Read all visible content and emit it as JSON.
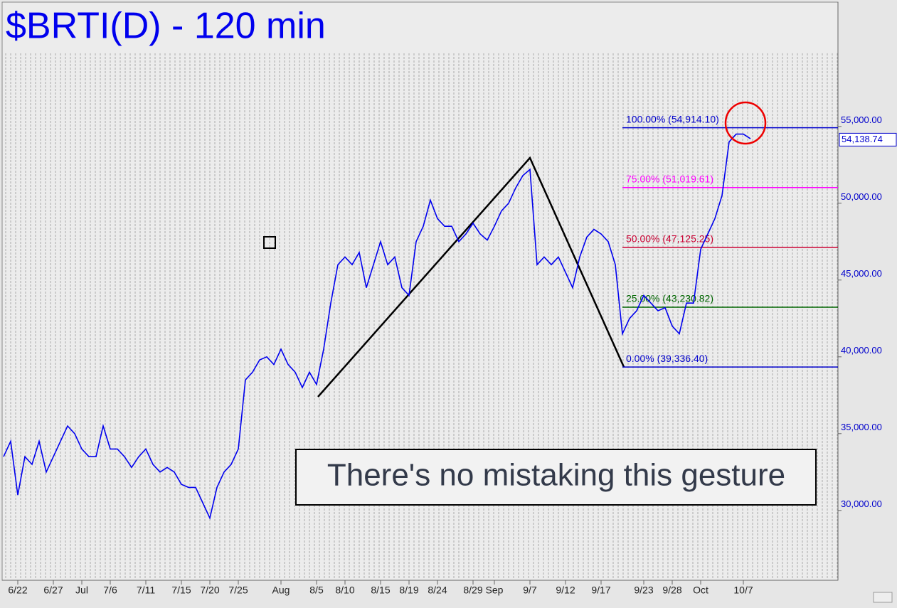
{
  "chart_data": {
    "type": "line",
    "title": "$BRTI(D) - 120 min",
    "annotation": "There's no mistaking this gesture",
    "categories": [
      null,
      null,
      "6/22",
      null,
      null,
      null,
      null,
      "6/27",
      null,
      null,
      null,
      "Jul",
      null,
      null,
      null,
      "7/6",
      null,
      null,
      null,
      null,
      "7/11",
      null,
      null,
      null,
      null,
      "7/15",
      null,
      null,
      null,
      "7/20",
      null,
      null,
      null,
      "7/25",
      null,
      null,
      null,
      null,
      null,
      "Aug",
      null,
      null,
      null,
      null,
      "8/5",
      null,
      null,
      null,
      "8/10",
      null,
      null,
      null,
      null,
      "8/15",
      null,
      null,
      null,
      "8/19",
      null,
      null,
      null,
      "8/24",
      null,
      null,
      null,
      null,
      "8/29",
      null,
      null,
      "Sep",
      null,
      null,
      null,
      null,
      "9/7",
      null,
      null,
      null,
      null,
      "9/12",
      null,
      null,
      null,
      null,
      "9/17",
      null,
      null,
      null,
      null,
      null,
      "9/23",
      null,
      null,
      null,
      "9/28",
      null,
      null,
      null,
      "Oct",
      null,
      null,
      null,
      null,
      null,
      "10/7",
      null
    ],
    "series": [
      {
        "name": "$BRTI(D)",
        "color": "#0000ee",
        "values": [
          33500,
          34500,
          31000,
          33500,
          33000,
          34500,
          32500,
          33500,
          34500,
          35500,
          35000,
          34000,
          33500,
          33500,
          35500,
          34000,
          34000,
          33500,
          32800,
          33500,
          34000,
          33000,
          32500,
          32800,
          32500,
          31700,
          31500,
          31500,
          30500,
          29500,
          31500,
          32500,
          33000,
          34000,
          38500,
          39000,
          39800,
          40000,
          39500,
          40500,
          39500,
          39000,
          38000,
          39000,
          38200,
          40500,
          43500,
          46000,
          46500,
          46000,
          46800,
          44500,
          46000,
          47500,
          46000,
          46500,
          44500,
          44000,
          47500,
          48500,
          50200,
          49000,
          48500,
          48500,
          47500,
          48000,
          48700,
          48000,
          47600,
          48500,
          49500,
          50000,
          51000,
          51800,
          52200,
          46000,
          46500,
          46000,
          46500,
          45500,
          44500,
          46500,
          47800,
          48300,
          48000,
          47500,
          46000,
          41500,
          42500,
          43000,
          44000,
          43500,
          43000,
          43200,
          42000,
          41500,
          43500,
          43500,
          47000,
          48000,
          49000,
          50500,
          54000,
          54500,
          54500,
          54200
        ]
      }
    ],
    "levels": [
      {
        "label": "100.00% (54,914.10)",
        "value": 54914.1,
        "color": "#0000cc"
      },
      {
        "label": "75.00% (51,019.61)",
        "value": 51019.61,
        "color": "#ff00ff"
      },
      {
        "label": "50.00% (47,125.25)",
        "value": 47125.25,
        "color": "#cc0033"
      },
      {
        "label": "25.00% (43,230.82)",
        "value": 43230.82,
        "color": "#006600"
      },
      {
        "label": "0.00% (39,336.40)",
        "value": 39336.4,
        "color": "#0000cc"
      }
    ],
    "last_price": {
      "value": 54138.74,
      "label": "54,138.74"
    },
    "ylim": [
      25500,
      63000
    ],
    "yticks": [
      {
        "value": 30000,
        "label": "30,000.00"
      },
      {
        "value": 35000,
        "label": "35,000.00"
      },
      {
        "value": 40000,
        "label": "40,000.00"
      },
      {
        "value": 45000,
        "label": "45,000.00"
      },
      {
        "value": 50000,
        "label": "50,000.00"
      },
      {
        "value": 55000,
        "label": "55,000.00"
      }
    ]
  }
}
